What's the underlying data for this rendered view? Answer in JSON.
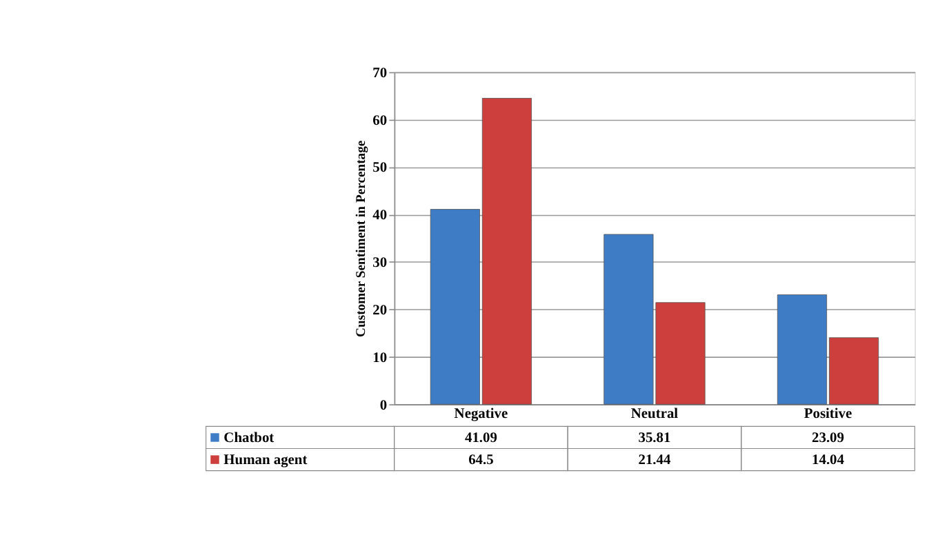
{
  "chart_data": {
    "type": "bar",
    "ylabel": "Customer Sentiment in Percentage",
    "categories": [
      "Negative",
      "Neutral",
      "Positive"
    ],
    "series": [
      {
        "name": "Chatbot",
        "color": "#3f7cc6",
        "values": [
          41.09,
          35.81,
          23.09
        ]
      },
      {
        "name": "Human agent",
        "color": "#cc3f3c",
        "values": [
          64.5,
          21.44,
          14.04
        ]
      }
    ],
    "ylim": [
      0,
      70
    ],
    "yticks": [
      0,
      10,
      20,
      30,
      40,
      50,
      60,
      70
    ],
    "grid": "y",
    "legend": "bottom",
    "data_labels": true
  }
}
